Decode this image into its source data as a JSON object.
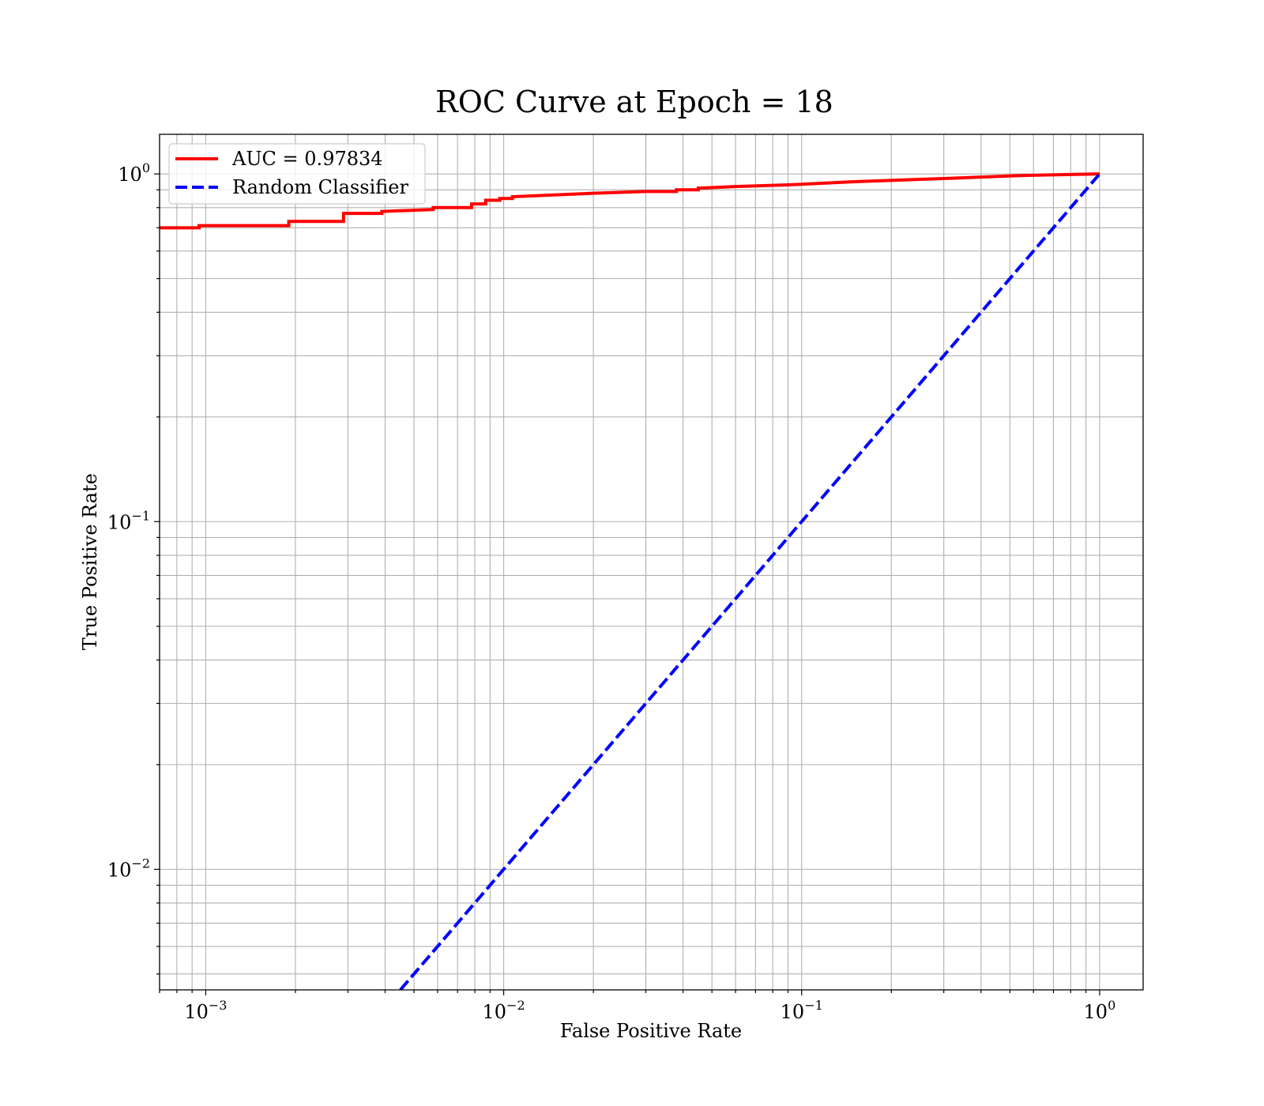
{
  "chart_data": {
    "type": "line",
    "title": "ROC Curve at Epoch = 18",
    "xlabel": "False Positive Rate",
    "ylabel": "True Positive Rate",
    "xscale": "log",
    "yscale": "log",
    "xlim": [
      0.0007,
      1.4
    ],
    "ylim": [
      0.0045,
      1.3
    ],
    "grid": true,
    "grid_which": "both",
    "legend_placement": "top-left",
    "x_ticks": [
      {
        "value": 0.001,
        "base": "10",
        "exp": "−3"
      },
      {
        "value": 0.01,
        "base": "10",
        "exp": "−2"
      },
      {
        "value": 0.1,
        "base": "10",
        "exp": "−1"
      },
      {
        "value": 1,
        "base": "10",
        "exp": "0"
      }
    ],
    "y_ticks": [
      {
        "value": 0.01,
        "base": "10",
        "exp": "−2"
      },
      {
        "value": 0.1,
        "base": "10",
        "exp": "−1"
      },
      {
        "value": 1,
        "base": "10",
        "exp": "0"
      }
    ],
    "series": [
      {
        "name": "AUC = 0.97834",
        "color": "#ff0000",
        "style": "solid",
        "step": true,
        "points": [
          [
            0.0007,
            0.7
          ],
          [
            0.00095,
            0.7
          ],
          [
            0.00095,
            0.71
          ],
          [
            0.0019,
            0.71
          ],
          [
            0.0019,
            0.73
          ],
          [
            0.0029,
            0.73
          ],
          [
            0.0029,
            0.77
          ],
          [
            0.0039,
            0.77
          ],
          [
            0.0039,
            0.78
          ],
          [
            0.0058,
            0.79
          ],
          [
            0.0058,
            0.8
          ],
          [
            0.0078,
            0.8
          ],
          [
            0.0078,
            0.82
          ],
          [
            0.0087,
            0.82
          ],
          [
            0.0087,
            0.84
          ],
          [
            0.0097,
            0.84
          ],
          [
            0.0097,
            0.85
          ],
          [
            0.0107,
            0.85
          ],
          [
            0.0107,
            0.86
          ],
          [
            0.02,
            0.88
          ],
          [
            0.03,
            0.89
          ],
          [
            0.038,
            0.89
          ],
          [
            0.038,
            0.9
          ],
          [
            0.045,
            0.9
          ],
          [
            0.045,
            0.91
          ],
          [
            0.06,
            0.92
          ],
          [
            0.09,
            0.93
          ],
          [
            0.15,
            0.95
          ],
          [
            0.3,
            0.97
          ],
          [
            0.55,
            0.99
          ],
          [
            1,
            1
          ]
        ]
      },
      {
        "name": "Random Classifier",
        "color": "#0000ff",
        "style": "dashed",
        "step": false,
        "points": [
          [
            0.0045,
            0.0045
          ],
          [
            1,
            1
          ]
        ]
      }
    ]
  }
}
